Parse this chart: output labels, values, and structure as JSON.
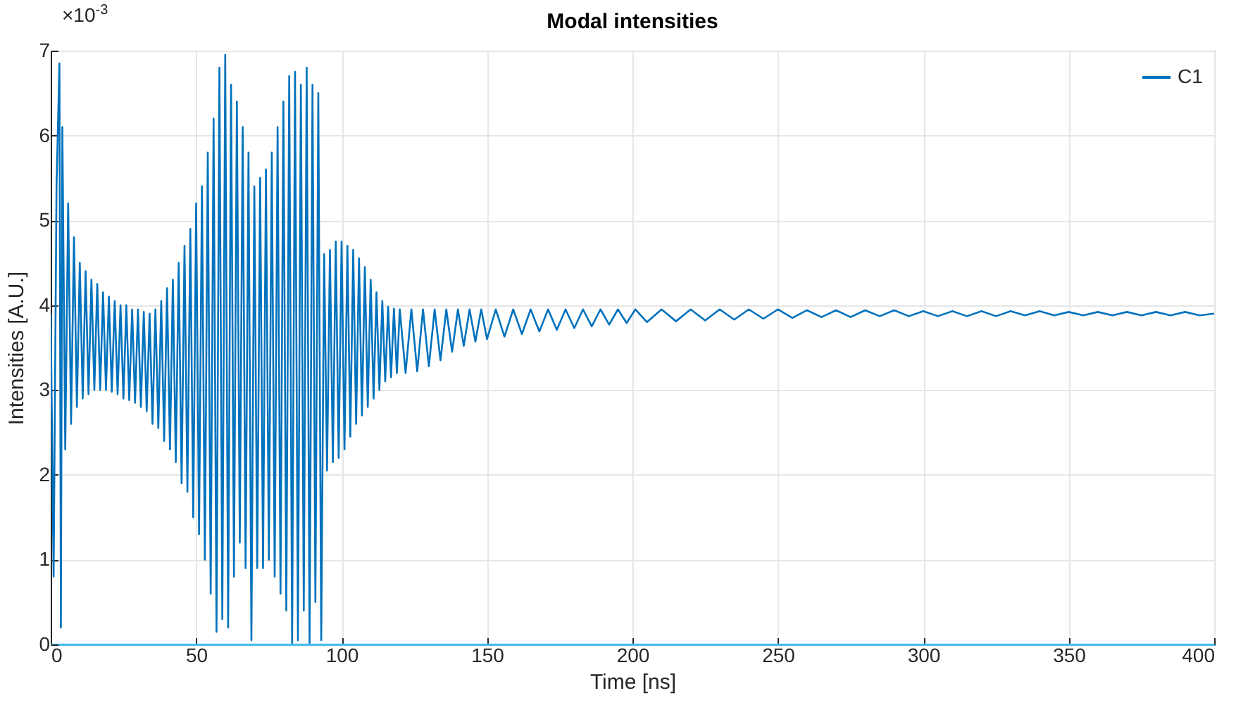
{
  "chart_data": {
    "type": "line",
    "title": "Modal intensities",
    "xlabel": "Time [ns]",
    "ylabel": "Intensities [A.U.]",
    "annotations": [
      "×10$^{-3}$"
    ],
    "xlim": [
      0,
      400
    ],
    "xticks": [
      0,
      50,
      100,
      150,
      200,
      250,
      300,
      350,
      400
    ],
    "ylim": [
      0,
      7
    ],
    "yticks": [
      0,
      1,
      2,
      3,
      4,
      5,
      6,
      7
    ],
    "grid": true,
    "legend": "top right",
    "marker": "none",
    "line_style": "solid",
    "series": [
      {
        "name": "C1",
        "color": "#0072bd",
        "x": [
          0,
          1,
          2,
          3,
          3.5,
          4,
          5,
          6,
          7,
          8,
          9,
          10,
          11,
          12,
          13,
          14,
          15,
          16,
          17,
          18,
          19,
          20,
          21,
          22,
          23,
          24,
          25,
          26,
          27,
          28,
          29,
          30,
          31,
          32,
          33,
          34,
          35,
          36,
          37,
          38,
          39,
          40,
          41,
          42,
          43,
          44,
          45,
          46,
          47,
          48,
          49,
          50,
          51,
          52,
          53,
          54,
          55,
          56,
          57,
          58,
          59,
          60,
          61,
          62,
          63,
          64,
          65,
          66,
          67,
          68,
          69,
          70,
          71,
          72,
          73,
          74,
          75,
          76,
          77,
          78,
          79,
          80,
          81,
          82,
          83,
          84,
          85,
          86,
          87,
          88,
          89,
          90,
          91,
          92,
          93,
          94,
          95,
          96,
          97,
          98,
          99,
          100,
          101,
          102,
          103,
          104,
          105,
          106,
          107,
          108,
          109,
          110,
          111,
          112,
          113,
          114,
          115,
          116,
          117,
          118,
          119,
          120,
          122,
          124,
          126,
          128,
          130,
          132,
          134,
          136,
          138,
          140,
          142,
          144,
          146,
          148,
          150,
          153,
          156,
          159,
          162,
          165,
          168,
          171,
          174,
          177,
          180,
          183,
          186,
          189,
          192,
          195,
          198,
          201,
          205,
          210,
          215,
          220,
          225,
          230,
          235,
          240,
          245,
          250,
          255,
          260,
          265,
          270,
          275,
          280,
          285,
          290,
          295,
          300,
          305,
          310,
          315,
          320,
          325,
          330,
          335,
          340,
          345,
          350,
          355,
          360,
          365,
          370,
          375,
          380,
          385,
          390,
          395,
          400
        ],
        "values": [
          3.9,
          0.8,
          5.4,
          6.85,
          0.2,
          6.1,
          2.3,
          5.2,
          2.6,
          4.8,
          2.8,
          4.5,
          2.9,
          4.4,
          2.95,
          4.3,
          3.0,
          4.25,
          3.0,
          4.15,
          3.0,
          4.1,
          2.98,
          4.05,
          2.95,
          4.0,
          2.9,
          4.0,
          2.88,
          3.95,
          2.85,
          3.95,
          2.8,
          3.92,
          2.75,
          3.9,
          2.6,
          3.95,
          2.55,
          4.05,
          2.4,
          4.2,
          2.3,
          4.3,
          2.15,
          4.5,
          1.9,
          4.7,
          1.8,
          4.9,
          1.5,
          5.2,
          1.3,
          5.4,
          1.0,
          5.8,
          0.6,
          6.2,
          0.15,
          6.8,
          0.3,
          6.95,
          0.2,
          6.6,
          0.8,
          6.4,
          1.2,
          6.1,
          0.9,
          5.8,
          0.05,
          5.4,
          0.9,
          5.5,
          0.9,
          5.6,
          1.0,
          5.8,
          0.8,
          6.1,
          0.6,
          6.4,
          0.4,
          6.7,
          0.0,
          6.75,
          0.05,
          6.6,
          0.4,
          6.8,
          0.0,
          6.6,
          0.5,
          6.5,
          0.05,
          4.6,
          2.05,
          4.65,
          2.15,
          4.75,
          2.2,
          4.75,
          2.3,
          4.7,
          2.45,
          4.65,
          2.6,
          4.55,
          2.7,
          4.45,
          2.8,
          4.3,
          2.9,
          4.15,
          3.0,
          4.05,
          3.1,
          3.98,
          3.15,
          3.96,
          3.2,
          3.95,
          3.2,
          3.95,
          3.22,
          3.95,
          3.28,
          3.95,
          3.35,
          3.95,
          3.45,
          3.95,
          3.52,
          3.95,
          3.57,
          3.95,
          3.6,
          3.95,
          3.63,
          3.95,
          3.66,
          3.95,
          3.69,
          3.95,
          3.71,
          3.95,
          3.73,
          3.95,
          3.75,
          3.95,
          3.77,
          3.95,
          3.79,
          3.95,
          3.8,
          3.95,
          3.81,
          3.95,
          3.82,
          3.95,
          3.83,
          3.95,
          3.84,
          3.95,
          3.85,
          3.94,
          3.86,
          3.94,
          3.86,
          3.94,
          3.87,
          3.94,
          3.87,
          3.93,
          3.87,
          3.93,
          3.87,
          3.93,
          3.87,
          3.93,
          3.88,
          3.93,
          3.88,
          3.92,
          3.88,
          3.92,
          3.88,
          3.92,
          3.88,
          3.92,
          3.88,
          3.92,
          3.88,
          3.9
        ]
      },
      {
        "color": "#4dbeee",
        "x": [
          0,
          400
        ],
        "values": [
          0,
          0
        ]
      }
    ]
  }
}
